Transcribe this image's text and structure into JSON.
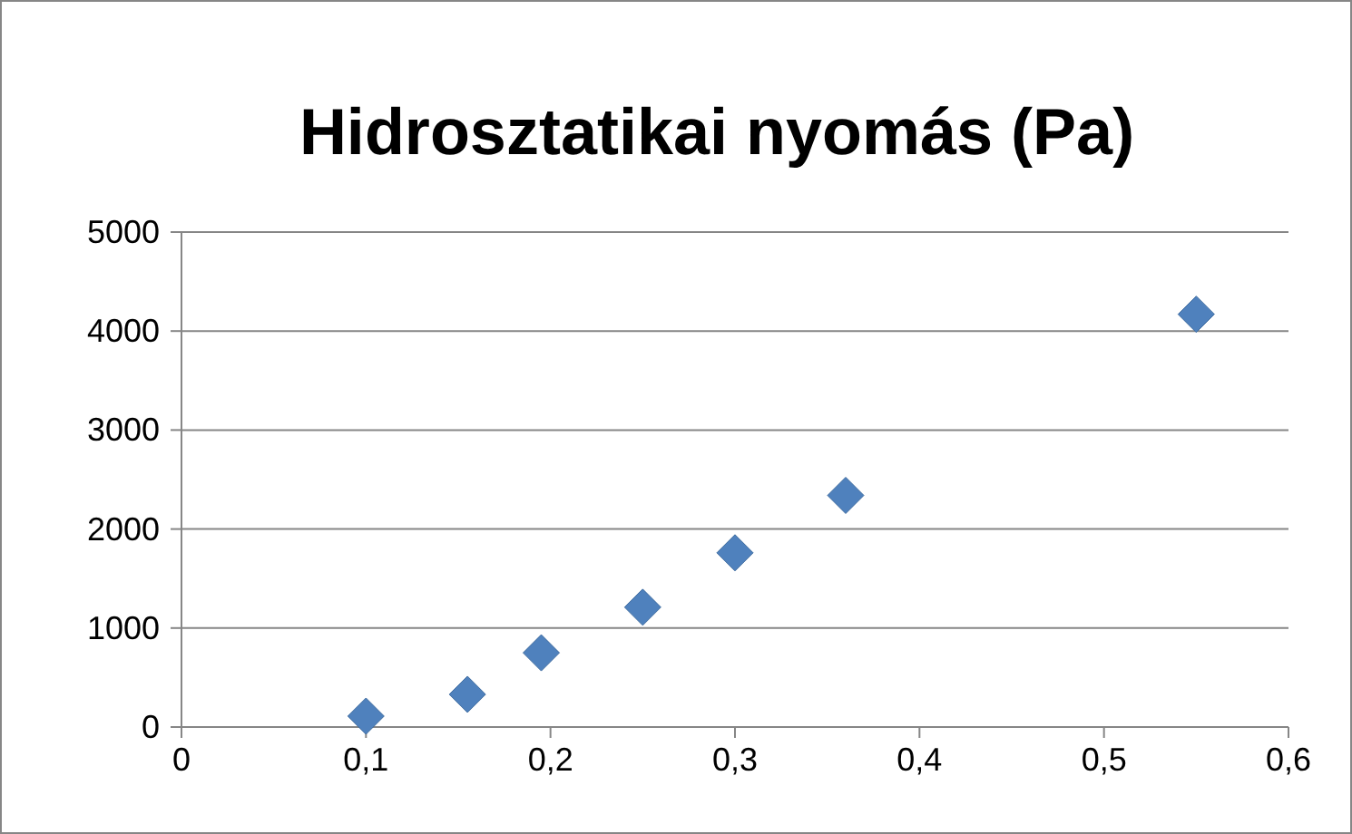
{
  "chart_data": {
    "type": "scatter",
    "title": "Hidrosztatikai nyomás (Pa)",
    "x": [
      0.1,
      0.155,
      0.195,
      0.25,
      0.3,
      0.36,
      0.55
    ],
    "series": [
      {
        "color": "#4f81bd",
        "values": [
          110,
          330,
          750,
          1210,
          1760,
          2340,
          4170
        ]
      }
    ],
    "xlim": [
      0,
      0.6
    ],
    "xticks": [
      {
        "value": 0,
        "label": "0"
      },
      {
        "value": 0.1,
        "label": "0,1"
      },
      {
        "value": 0.2,
        "label": "0,2"
      },
      {
        "value": 0.3,
        "label": "0,3"
      },
      {
        "value": 0.4,
        "label": "0,4"
      },
      {
        "value": 0.5,
        "label": "0,5"
      },
      {
        "value": 0.6,
        "label": "0,6"
      }
    ],
    "ylim": [
      0,
      5000
    ],
    "yticks": [
      0,
      1000,
      2000,
      3000,
      4000,
      5000
    ],
    "grid": "y",
    "marker": "diamond"
  }
}
